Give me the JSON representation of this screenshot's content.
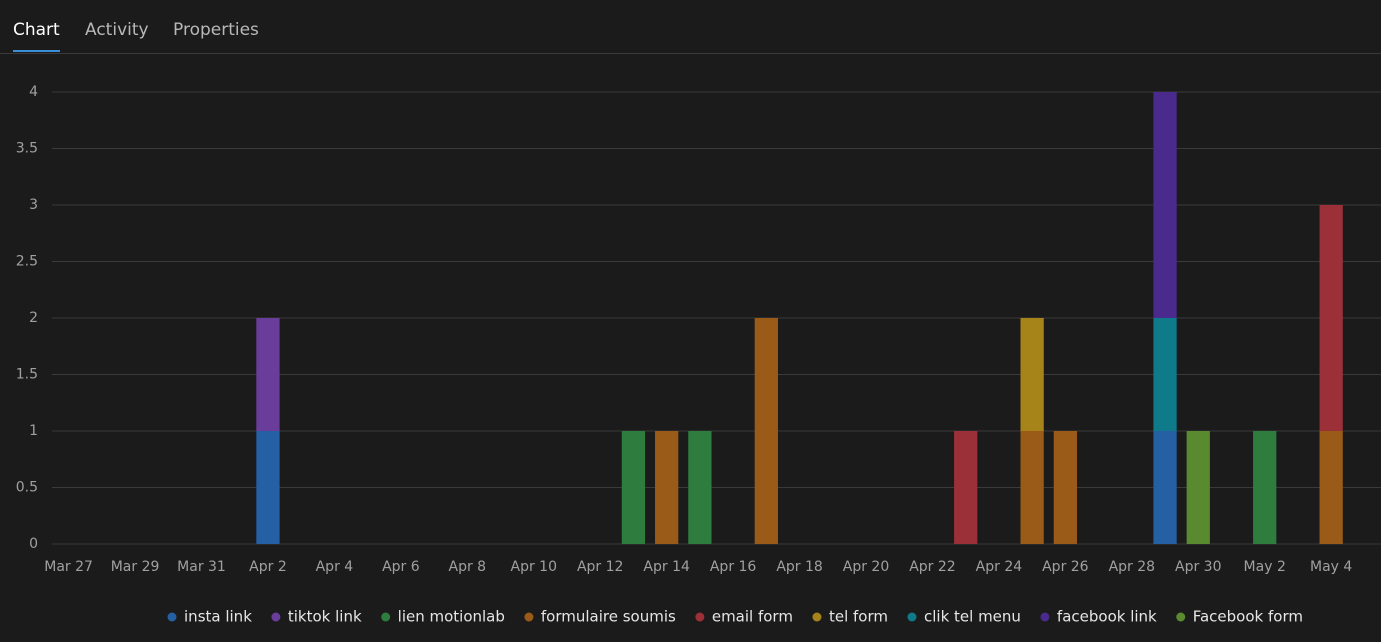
{
  "tabs": [
    "Chart",
    "Activity",
    "Properties"
  ],
  "active_tab": 0,
  "chart_data": {
    "type": "stacked-bar",
    "categories": [
      "Mar 27",
      null,
      "Mar 29",
      null,
      "Mar 31",
      null,
      "Apr 2",
      null,
      "Apr 4",
      null,
      "Apr 6",
      null,
      "Apr 8",
      null,
      "Apr 10",
      null,
      "Apr 12",
      null,
      "Apr 14",
      null,
      "Apr 16",
      null,
      "Apr 18",
      null,
      "Apr 20",
      null,
      "Apr 22",
      null,
      "Apr 24",
      null,
      "Apr 26",
      null,
      "Apr 28",
      null,
      "Apr 30",
      null,
      "May 2",
      null,
      "May 4",
      null
    ],
    "series": [
      {
        "name": "insta link",
        "color": "#2660a4",
        "values": [
          0,
          0,
          0,
          0,
          0,
          0,
          1,
          0,
          0,
          0,
          0,
          0,
          0,
          0,
          0,
          0,
          0,
          0,
          0,
          0,
          0,
          0,
          0,
          0,
          0,
          0,
          0,
          0,
          0,
          0,
          0,
          0,
          0,
          1,
          0,
          0,
          0,
          0,
          0,
          0
        ]
      },
      {
        "name": "tiktok link",
        "color": "#6a3d9a",
        "values": [
          0,
          0,
          0,
          0,
          0,
          0,
          1,
          0,
          0,
          0,
          0,
          0,
          0,
          0,
          0,
          0,
          0,
          0,
          0,
          0,
          0,
          0,
          0,
          0,
          0,
          0,
          0,
          0,
          0,
          0,
          0,
          0,
          0,
          0,
          0,
          0,
          0,
          0,
          0,
          0
        ]
      },
      {
        "name": "lien motionlab",
        "color": "#2e7d3e",
        "values": [
          0,
          0,
          0,
          0,
          0,
          0,
          0,
          0,
          0,
          0,
          0,
          0,
          0,
          0,
          0,
          0,
          0,
          1,
          0,
          1,
          0,
          0,
          0,
          0,
          0,
          0,
          0,
          0,
          0,
          0,
          0,
          0,
          0,
          0,
          0,
          0,
          1,
          0,
          0,
          0
        ]
      },
      {
        "name": "formulaire soumis",
        "color": "#9a5a18",
        "values": [
          0,
          0,
          0,
          0,
          0,
          0,
          0,
          0,
          0,
          0,
          0,
          0,
          0,
          0,
          0,
          0,
          0,
          0,
          1,
          0,
          0,
          2,
          0,
          0,
          0,
          0,
          0,
          0,
          0,
          1,
          1,
          0,
          0,
          0,
          0,
          0,
          0,
          0,
          1,
          0
        ]
      },
      {
        "name": "email form",
        "color": "#9b3038",
        "values": [
          0,
          0,
          0,
          0,
          0,
          0,
          0,
          0,
          0,
          0,
          0,
          0,
          0,
          0,
          0,
          0,
          0,
          0,
          0,
          0,
          0,
          0,
          0,
          0,
          0,
          0,
          0,
          1,
          0,
          0,
          0,
          0,
          0,
          0,
          0,
          0,
          0,
          0,
          2,
          0
        ]
      },
      {
        "name": "tel form",
        "color": "#a7841a",
        "values": [
          0,
          0,
          0,
          0,
          0,
          0,
          0,
          0,
          0,
          0,
          0,
          0,
          0,
          0,
          0,
          0,
          0,
          0,
          0,
          0,
          0,
          0,
          0,
          0,
          0,
          0,
          0,
          0,
          0,
          1,
          0,
          0,
          0,
          0,
          0,
          0,
          0,
          0,
          0,
          0
        ]
      },
      {
        "name": "clik tel menu",
        "color": "#0f7a8a",
        "values": [
          0,
          0,
          0,
          0,
          0,
          0,
          0,
          0,
          0,
          0,
          0,
          0,
          0,
          0,
          0,
          0,
          0,
          0,
          0,
          0,
          0,
          0,
          0,
          0,
          0,
          0,
          0,
          0,
          0,
          0,
          0,
          0,
          0,
          1,
          0,
          0,
          0,
          0,
          0,
          0
        ]
      },
      {
        "name": "facebook link",
        "color": "#4a2a8c",
        "values": [
          0,
          0,
          0,
          0,
          0,
          0,
          0,
          0,
          0,
          0,
          0,
          0,
          0,
          0,
          0,
          0,
          0,
          0,
          0,
          0,
          0,
          0,
          0,
          0,
          0,
          0,
          0,
          0,
          0,
          0,
          0,
          0,
          0,
          2,
          0,
          0,
          0,
          0,
          0,
          0
        ]
      },
      {
        "name": "Facebook form",
        "color": "#5a8a30",
        "values": [
          0,
          0,
          0,
          0,
          0,
          0,
          0,
          0,
          0,
          0,
          0,
          0,
          0,
          0,
          0,
          0,
          0,
          0,
          0,
          0,
          0,
          0,
          0,
          0,
          0,
          0,
          0,
          0,
          0,
          0,
          0,
          0,
          0,
          0,
          1,
          0,
          0,
          0,
          0,
          0
        ]
      }
    ],
    "ylim": [
      0,
      4
    ],
    "yticks": [
      0,
      0.5,
      1,
      1.5,
      2,
      2.5,
      3,
      3.5,
      4
    ],
    "grid": true,
    "legend": "bottom"
  }
}
